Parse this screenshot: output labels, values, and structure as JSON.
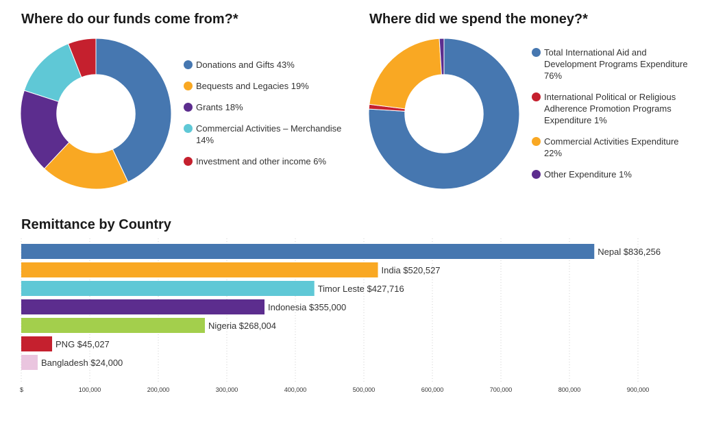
{
  "chart_data": [
    {
      "type": "pie",
      "title": "Where do our funds come from?*",
      "hole": 0.52,
      "slices": [
        {
          "label": "Donations and Gifts 43%",
          "value": 43,
          "color": "#4677b0"
        },
        {
          "label": "Bequests and Legacies 19%",
          "value": 19,
          "color": "#f9a823"
        },
        {
          "label": "Grants 18%",
          "value": 18,
          "color": "#5c2d8e"
        },
        {
          "label": "Commercial Activities – Merchandise 14%",
          "value": 14,
          "color": "#5fc8d6"
        },
        {
          "label": "Investment and other income 6%",
          "value": 6,
          "color": "#c5202e"
        }
      ]
    },
    {
      "type": "pie",
      "title": "Where did we spend the money?*",
      "hole": 0.52,
      "slices": [
        {
          "label": "Total International Aid and Development Programs Expenditure 76%",
          "value": 76,
          "color": "#4677b0"
        },
        {
          "label": "International Political or Religious Adherence Promotion Programs Expenditure 1%",
          "value": 1,
          "color": "#c5202e"
        },
        {
          "label": "Commercial Activities Expenditure 22%",
          "value": 22,
          "color": "#f9a823"
        },
        {
          "label": "Other Expenditure 1%",
          "value": 1,
          "color": "#5c2d8e"
        }
      ]
    },
    {
      "type": "bar",
      "orientation": "horizontal",
      "title": "Remittance by Country",
      "xlim": [
        0,
        900000
      ],
      "grid": true,
      "x_ticks": [
        {
          "value": 0,
          "label": "$"
        },
        {
          "value": 100000,
          "label": "100,000"
        },
        {
          "value": 200000,
          "label": "200,000"
        },
        {
          "value": 300000,
          "label": "300,000"
        },
        {
          "value": 400000,
          "label": "400,000"
        },
        {
          "value": 500000,
          "label": "500,000"
        },
        {
          "value": 600000,
          "label": "600,000"
        },
        {
          "value": 700000,
          "label": "700,000"
        },
        {
          "value": 800000,
          "label": "800,000"
        },
        {
          "value": 900000,
          "label": "900,000"
        }
      ],
      "bars": [
        {
          "category": "Nepal",
          "value": 836256,
          "label": "Nepal $836,256",
          "color": "#4677b0"
        },
        {
          "category": "India",
          "value": 520527,
          "label": "India $520,527",
          "color": "#f9a823"
        },
        {
          "category": "Timor Leste",
          "value": 427716,
          "label": "Timor Leste $427,716",
          "color": "#5fc8d6"
        },
        {
          "category": "Indonesia",
          "value": 355000,
          "label": "Indonesia $355,000",
          "color": "#5c2d8e"
        },
        {
          "category": "Nigeria",
          "value": 268004,
          "label": "Nigeria $268,004",
          "color": "#a3cf4c"
        },
        {
          "category": "PNG",
          "value": 45027,
          "label": "PNG $45,027",
          "color": "#c5202e"
        },
        {
          "category": "Bangladesh",
          "value": 24000,
          "label": "Bangladesh $24,000",
          "color": "#eac5df"
        }
      ]
    }
  ]
}
